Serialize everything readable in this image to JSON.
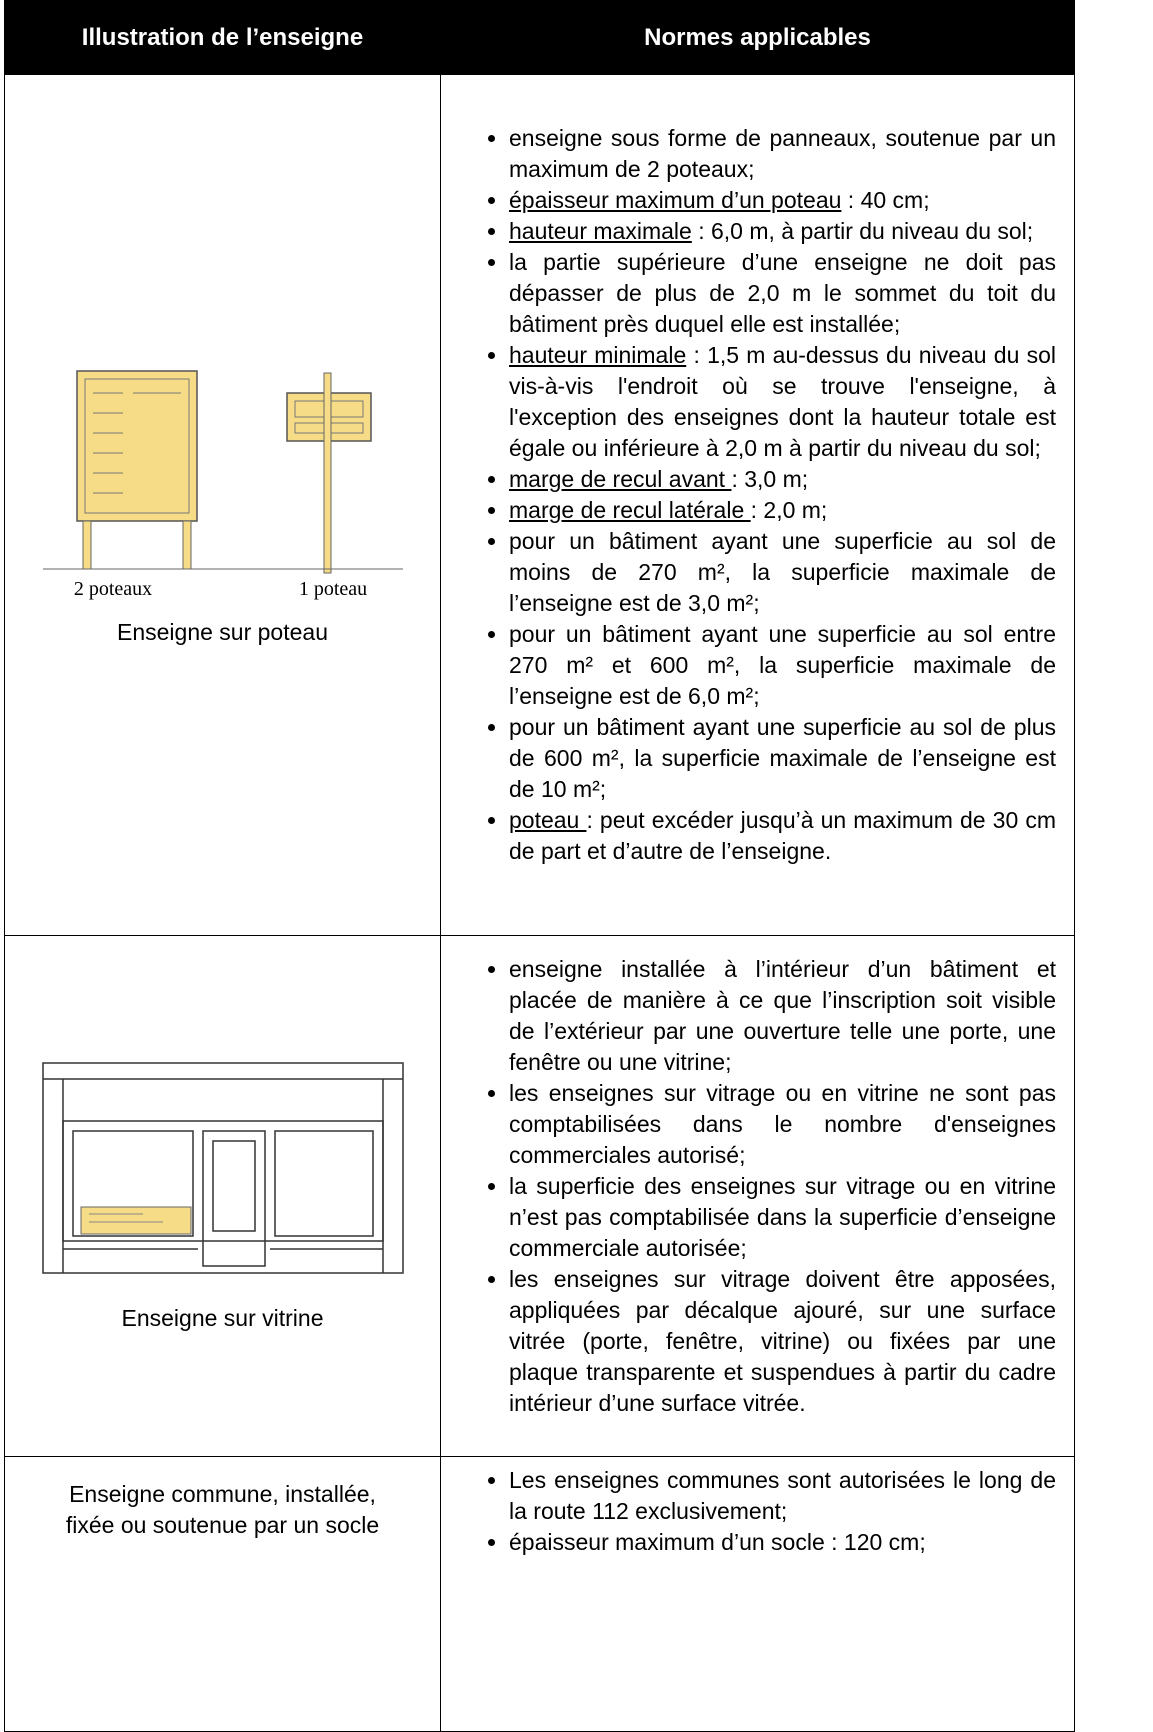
{
  "table": {
    "headers": [
      "Illustration de l’enseigne",
      "Normes applicables"
    ],
    "rows": [
      {
        "caption": "Enseigne sur poteau",
        "illustration_labels": [
          "2 poteaux",
          "1 poteau"
        ],
        "items": [
          {
            "text": "enseigne sous forme de panneaux, soutenue par un maximum de 2 poteaux;"
          },
          {
            "term": "épaisseur maximum d’un poteau",
            "text": " : 40 cm;"
          },
          {
            "term": "hauteur maximale",
            "text": " : 6,0 m, à partir du niveau du sol;"
          },
          {
            "text": "la partie supérieure d’une enseigne ne doit pas dépasser de plus de 2,0 m le sommet du toit du bâtiment près duquel elle est installée;"
          },
          {
            "term": "hauteur minimale",
            "text": " : 1,5 m au-dessus du niveau du sol vis-à-vis l'endroit où se trouve l'enseigne, à l'exception des enseignes dont la hauteur totale est égale ou inférieure à 2,0 m à partir du niveau du sol;"
          },
          {
            "term": "marge de recul avant ",
            "text": ": 3,0 m;"
          },
          {
            "term": "marge de recul latérale ",
            "text": ": 2,0 m;"
          },
          {
            "text": "pour un bâtiment ayant une superficie au sol de moins de 270 m², la superficie maximale de l’enseigne est de 3,0 m²;"
          },
          {
            "text": "pour un bâtiment ayant une superficie au sol entre 270 m² et 600 m², la superficie maximale de l’enseigne est de 6,0 m²;"
          },
          {
            "text": "pour un bâtiment ayant une superficie au sol de plus de 600 m², la superficie maximale de l’enseigne est de 10 m²;"
          },
          {
            "term": "poteau ",
            "text": ": peut excéder jusqu’à un maximum de 30 cm de part et d’autre de l’enseigne."
          }
        ]
      },
      {
        "caption": "Enseigne sur vitrine",
        "items": [
          {
            "text": "enseigne installée à l’intérieur d’un bâtiment et placée de manière à ce que l’inscription soit visible de l’extérieur par une ouverture telle une porte, une fenêtre ou une vitrine;"
          },
          {
            "text": "les enseignes sur vitrage ou en vitrine ne sont pas comptabilisées dans le nombre d'enseignes commerciales autorisé;"
          },
          {
            "text": "la superficie des enseignes sur vitrage ou en vitrine n’est pas comptabilisée dans la superficie d’enseigne commerciale autorisée;"
          },
          {
            "text": "les enseignes sur vitrage doivent être apposées, appliquées par décalque ajouré, sur une surface vitrée (porte, fenêtre, vitrine) ou fixées par une plaque transparente et suspendues à partir du cadre intérieur d’une surface vitrée."
          }
        ]
      },
      {
        "caption": "Enseigne commune, installée, fixée ou soutenue par un socle",
        "items": [
          {
            "text": "Les enseignes communes sont autorisées le long de la route 112 exclusivement;"
          },
          {
            "text": "épaisseur maximum d’un socle : 120 cm;"
          }
        ]
      }
    ]
  }
}
